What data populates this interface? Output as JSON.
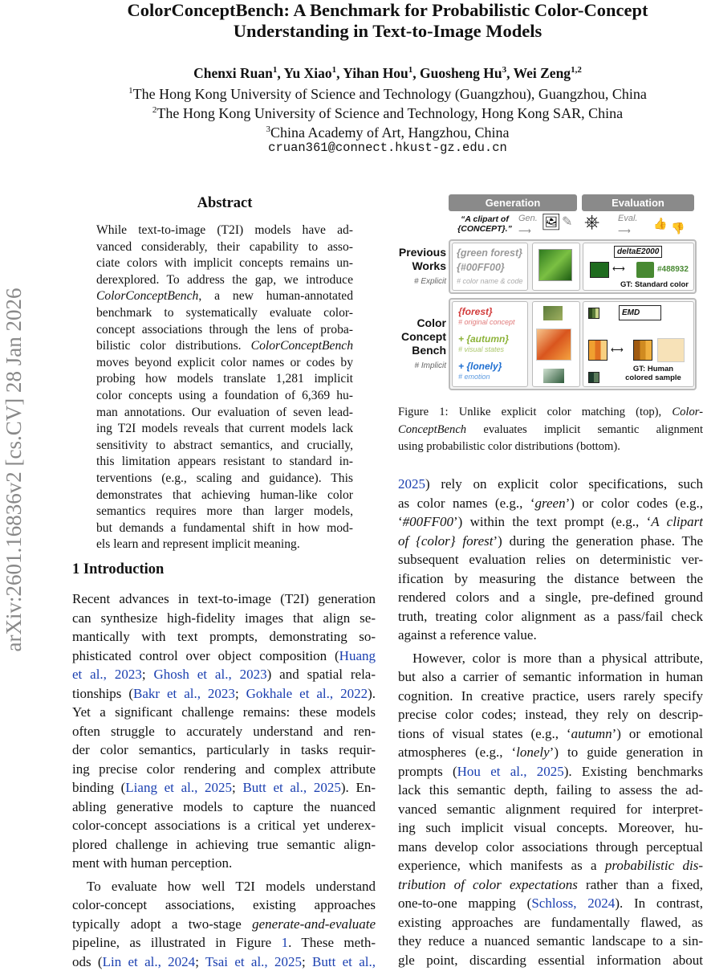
{
  "title": [
    "ColorConceptBench: A Benchmark for Probabilistic Color-Concept",
    "Understanding in Text-to-Image Models"
  ],
  "authors": [
    {
      "name": "Chenxi Ruan",
      "sup": "1"
    },
    {
      "name": "Yu Xiao",
      "sup": "1"
    },
    {
      "name": "Yihan Hou",
      "sup": "1"
    },
    {
      "name": "Guosheng Hu",
      "sup": "3"
    },
    {
      "name": "Wei Zeng",
      "sup": "1,2"
    }
  ],
  "affiliations": [
    {
      "sup": "1",
      "text": "The Hong Kong University of Science and Technology (Guangzhou), Guangzhou, China"
    },
    {
      "sup": "2",
      "text": "The Hong Kong University of Science and Technology, Hong Kong SAR, China"
    },
    {
      "sup": "3",
      "text": "China Academy of Art, Hangzhou, China"
    }
  ],
  "email": "cruan361@connect.hkust-gz.edu.cn",
  "arxiv_id": "arXiv:2601.16836v2  [cs.CV]  28 Jan 2026",
  "abstract_heading": "Abstract",
  "abstract": [
    [
      [
        "While text-to-image (T2I) models have ad-"
      ]
    ],
    [
      [
        "vanced considerably, their capability to asso-"
      ]
    ],
    [
      [
        "ciate colors with implicit concepts remains un-"
      ]
    ],
    [
      [
        "derexplored. To address the gap, we introduce"
      ]
    ],
    [
      [
        "ColorConceptBench",
        "em"
      ],
      [
        ", a new human-annotated"
      ]
    ],
    [
      [
        "benchmark to systematically evaluate color-"
      ]
    ],
    [
      [
        "concept associations through the lens of proba-"
      ]
    ],
    [
      [
        "bilistic color distributions. "
      ],
      [
        "ColorConceptBench",
        "em"
      ]
    ],
    [
      [
        "moves beyond explicit color names or codes by"
      ]
    ],
    [
      [
        "probing how models translate 1,281 implicit"
      ]
    ],
    [
      [
        "color concepts using a foundation of 6,369 hu-"
      ]
    ],
    [
      [
        "man annotations. Our evaluation of seven lead-"
      ]
    ],
    [
      [
        "ing T2I models reveals that current models lack"
      ]
    ],
    [
      [
        "sensitivity to abstract semantics, and crucially,"
      ]
    ],
    [
      [
        "this limitation appears resistant to standard in-"
      ]
    ],
    [
      [
        "terventions (e.g., scaling and guidance). This"
      ]
    ],
    [
      [
        "demonstrates that achieving human-like color"
      ]
    ],
    [
      [
        "semantics requires more than larger models,"
      ]
    ],
    [
      [
        "but demands a fundamental shift in how mod-"
      ]
    ],
    [
      [
        "els learn and represent implicit meaning."
      ]
    ]
  ],
  "section_heading": "1    Introduction",
  "left_paragraphs": [
    [
      [
        [
          "Recent advances in text-to-image (T2I) generation"
        ]
      ],
      [
        [
          "can synthesize high-fidelity images that align se-"
        ]
      ],
      [
        [
          "mantically with text prompts, demonstrating so-"
        ]
      ],
      [
        [
          "phisticated control over object composition ("
        ],
        [
          "Huang",
          "cite"
        ]
      ],
      [
        [
          "et al., 2023",
          "cite"
        ],
        [
          "; "
        ],
        [
          "Ghosh et al., 2023",
          "cite"
        ],
        [
          ") and spatial rela-"
        ]
      ],
      [
        [
          "tionships ("
        ],
        [
          "Bakr et al., 2023",
          "cite"
        ],
        [
          "; "
        ],
        [
          "Gokhale et al., 2022",
          "cite"
        ],
        [
          ")."
        ]
      ],
      [
        [
          "Yet a significant challenge remains: these models"
        ]
      ],
      [
        [
          "often struggle to accurately understand and ren-"
        ]
      ],
      [
        [
          "der color semantics, particularly in tasks requir-"
        ]
      ],
      [
        [
          "ing precise color rendering and complex attribute"
        ]
      ],
      [
        [
          "binding ("
        ],
        [
          "Liang et al., 2025",
          "cite"
        ],
        [
          "; "
        ],
        [
          "Butt et al., 2025",
          "cite"
        ],
        [
          "). En-"
        ]
      ],
      [
        [
          "abling generative models to capture the nuanced"
        ]
      ],
      [
        [
          "color-concept associations is a critical yet underex-"
        ]
      ],
      [
        [
          "plored challenge in achieving true semantic align-"
        ]
      ],
      [
        [
          "ment with human perception."
        ]
      ]
    ],
    [
      [
        [
          "To evaluate how well T2I models understand"
        ]
      ],
      [
        [
          "color-concept associations, existing approaches"
        ]
      ],
      [
        [
          "typically adopt a two-stage "
        ],
        [
          "generate-and-evaluate",
          "em"
        ]
      ],
      [
        [
          "pipeline, as illustrated in Figure "
        ],
        [
          "1",
          "cite"
        ],
        [
          ".  These meth-"
        ]
      ],
      [
        [
          "ods ("
        ],
        [
          "Lin et al., 2024",
          "cite"
        ],
        [
          "; "
        ],
        [
          "Tsai et al., 2025",
          "cite"
        ],
        [
          "; "
        ],
        [
          "Butt et al.,",
          "cite"
        ]
      ]
    ]
  ],
  "right_paragraphs": [
    [
      [
        [
          "2025",
          "cite"
        ],
        [
          ") rely on explicit color specifications, such"
        ]
      ],
      [
        [
          "as color names (e.g., ‘"
        ],
        [
          "green",
          "em"
        ],
        [
          "’) or color codes (e.g.,"
        ]
      ],
      [
        [
          "‘"
        ],
        [
          "#00FF00",
          "em"
        ],
        [
          "’) within the text prompt (e.g., ‘"
        ],
        [
          "A clipart",
          "em"
        ]
      ],
      [
        [
          "of {color} forest",
          "em"
        ],
        [
          "’) during the generation phase. The"
        ]
      ],
      [
        [
          "subsequent evaluation relies on deterministic ver-"
        ]
      ],
      [
        [
          "ification by measuring the distance between the"
        ]
      ],
      [
        [
          "rendered colors and a single, pre-defined ground"
        ]
      ],
      [
        [
          "truth, treating color alignment as a pass/fail check"
        ]
      ],
      [
        [
          "against a reference value."
        ]
      ]
    ],
    [
      [
        [
          "However, color is more than a physical attribute,"
        ]
      ],
      [
        [
          "but also a carrier of semantic information in human"
        ]
      ],
      [
        [
          "cognition. In creative practice, users rarely specify"
        ]
      ],
      [
        [
          "precise color codes; instead, they rely on descrip-"
        ]
      ],
      [
        [
          "tions of visual states (e.g., ‘"
        ],
        [
          "autumn",
          "em"
        ],
        [
          "’) or emotional"
        ]
      ],
      [
        [
          "atmospheres (e.g., ‘"
        ],
        [
          "lonely",
          "em"
        ],
        [
          "’) to guide generation in"
        ]
      ],
      [
        [
          "prompts ("
        ],
        [
          "Hou et al., 2025",
          "cite"
        ],
        [
          "). Existing benchmarks"
        ]
      ],
      [
        [
          "lack this semantic depth, failing to assess the ad-"
        ]
      ],
      [
        [
          "vanced semantic alignment required for interpret-"
        ]
      ],
      [
        [
          "ing such implicit visual concepts.  Moreover, hu-"
        ]
      ],
      [
        [
          "mans develop color associations through perceptual"
        ]
      ],
      [
        [
          "experience, which manifests as a "
        ],
        [
          "probabilistic dis-",
          "em"
        ]
      ],
      [
        [
          "tribution of color expectations",
          "em"
        ],
        [
          " rather than a fixed,"
        ]
      ],
      [
        [
          "one-to-one mapping ("
        ],
        [
          "Schloss, 2024",
          "cite"
        ],
        [
          "). In contrast,"
        ]
      ],
      [
        [
          "existing approaches are fundamentally flawed, as"
        ]
      ],
      [
        [
          "they reduce a nuanced semantic landscape to a sin-"
        ]
      ],
      [
        [
          "gle point, discarding essential information about"
        ]
      ]
    ]
  ],
  "figure": {
    "generation": "Generation",
    "evaluation": "Evaluation",
    "prompt": "“A clipart of {CONCEPT}.”",
    "gen": "Gen.",
    "eval": "Eval.",
    "prev_label": "Previous Works",
    "prev_tag": "# Explicit",
    "prev_green": "{green forest}",
    "prev_code": "{#00FF00}",
    "prev_note": "# color name & code",
    "delta": "deltaE2000",
    "gt_hex": "#488932",
    "gt_standard": "GT: Standard color",
    "ccb_label": "Color Concept Bench",
    "ccb_tag": "# Implicit",
    "forest": "{forest}",
    "forest_note": "# original concept",
    "autumn": "+ {autumn}",
    "autumn_note": "# visual states",
    "lonely": "+ {lonely}",
    "lonely_note": "# emotion",
    "emd": "EMD",
    "gt_human": "GT: Human colored sample",
    "colors": {
      "forest_green": "#1e6b1e",
      "gt_green": "#488932",
      "red": "#d23b3b",
      "olive": "#8db33a",
      "blue": "#1f6fd1",
      "orange": "#e88a2a"
    }
  },
  "caption": [
    [
      [
        "Figure 1: Unlike explicit color matching (top), "
      ],
      [
        "Color-",
        "em"
      ]
    ],
    [
      [
        "ConceptBench",
        "em"
      ],
      [
        " evaluates implicit semantic alignment"
      ]
    ],
    [
      [
        "using probabilistic color distributions (bottom)."
      ]
    ]
  ]
}
